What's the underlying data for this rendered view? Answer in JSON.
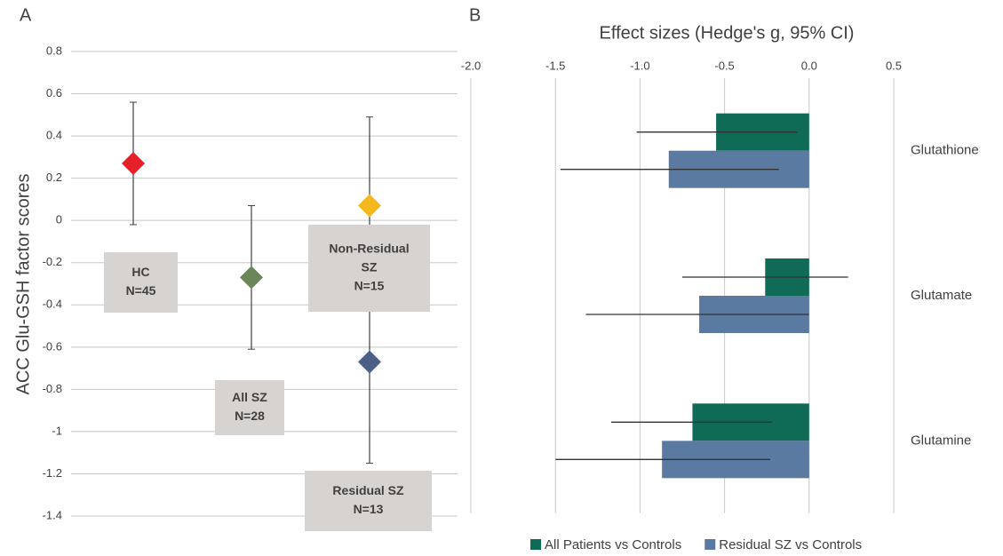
{
  "chart_data": [
    {
      "type": "scatter",
      "panel": "A",
      "ylabel": "ACC Glu-GSH factor scores",
      "ylim": [
        -1.4,
        0.8
      ],
      "yticks": [
        0.8,
        0.6,
        0.4,
        0.2,
        0,
        -0.2,
        -0.4,
        -0.6,
        -0.8,
        -1,
        -1.2,
        -1.4
      ],
      "grid": true,
      "series": [
        {
          "name": "HC",
          "lines": [
            "HC",
            "N=45"
          ],
          "color": "#e4202b",
          "values": [
            0.27
          ],
          "errors": [
            0.29
          ]
        },
        {
          "name": "All SZ",
          "lines": [
            "All SZ",
            "N=28"
          ],
          "color": "#6a8759",
          "values": [
            -0.27
          ],
          "errors": [
            0.34
          ]
        },
        {
          "name": "Non-Residual SZ",
          "lines": [
            "Non-Residual",
            "SZ",
            "N=15"
          ],
          "color": "#f4b81c",
          "values": [
            0.07
          ],
          "errors": [
            0.42
          ]
        },
        {
          "name": "Residual SZ",
          "lines": [
            "Residual SZ",
            "N=13"
          ],
          "color": "#4e5f87",
          "values": [
            -0.67
          ],
          "errors": [
            0.48
          ]
        }
      ]
    },
    {
      "type": "hbar",
      "panel": "B",
      "title": "Effect sizes (Hedge's g, 95% CI)",
      "categories": [
        "Glutathione",
        "Glutamate",
        "Glutamine"
      ],
      "xlim": [
        -2.0,
        0.5
      ],
      "xticks": [
        {
          "value": -2.0,
          "label": "-2.0"
        },
        {
          "value": -1.5,
          "label": "-1.5"
        },
        {
          "value": -1.0,
          "label": "-1.0"
        },
        -0.5,
        {
          "value": 0,
          "label": "0.0"
        },
        0.5
      ],
      "grid": true,
      "legend": "bottom",
      "series": [
        {
          "name": "All Patients vs Controls",
          "color": "#0f6a56",
          "values": [
            -0.55,
            -0.26,
            -0.69
          ],
          "ci_low": [
            -1.02,
            -0.75,
            -1.17
          ],
          "ci_high": [
            -0.07,
            0.23,
            -0.22
          ]
        },
        {
          "name": "Residual SZ vs Controls",
          "color": "#5a7aa2",
          "values": [
            -0.83,
            -0.65,
            -0.87
          ],
          "ci_low": [
            -1.47,
            -1.32,
            -1.5
          ],
          "ci_high": [
            -0.18,
            0.0,
            -0.23
          ]
        }
      ]
    }
  ]
}
